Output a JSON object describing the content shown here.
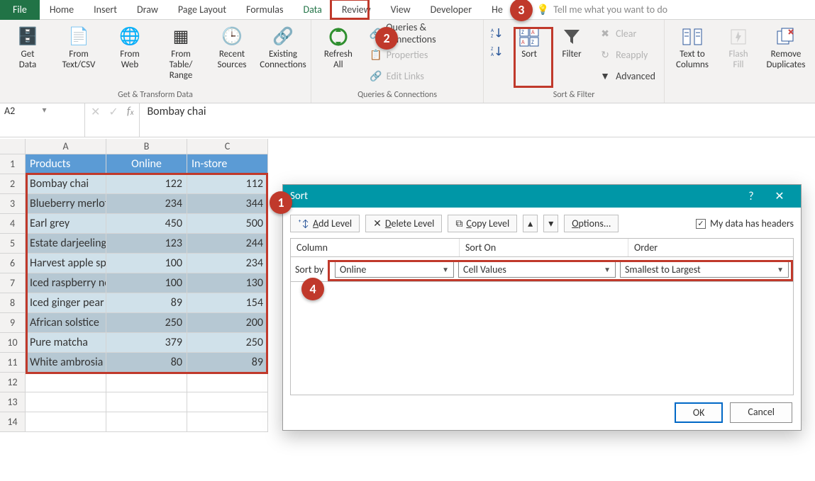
{
  "tabs": {
    "file": "File",
    "list": [
      "Home",
      "Insert",
      "Draw",
      "Page Layout",
      "Formulas",
      "Data",
      "Review",
      "View",
      "Developer",
      "He"
    ],
    "active": "Data"
  },
  "tellme": "Tell me what you want to do",
  "ribbon": {
    "get_transform": {
      "label": "Get & Transform Data",
      "buttons": [
        "Get\nData",
        "From\nText/CSV",
        "From\nWeb",
        "From Table/\nRange",
        "Recent\nSources",
        "Existing\nConnections"
      ]
    },
    "queries": {
      "label": "Queries & Connections",
      "refresh": "Refresh\nAll",
      "items": [
        "Queries & Connections",
        "Properties",
        "Edit Links"
      ]
    },
    "sortfilter": {
      "label": "Sort & Filter",
      "sort": "Sort",
      "filter": "Filter",
      "clear": "Clear",
      "reapply": "Reapply",
      "advanced": "Advanced"
    },
    "datatools": {
      "t2c": "Text to\nColumns",
      "ff": "Flash\nFill",
      "rd": "Remove\nDuplicates"
    }
  },
  "formula_bar": {
    "name": "A2",
    "value": "Bombay chai"
  },
  "grid": {
    "cols": [
      "A",
      "B",
      "C"
    ],
    "header": [
      "Products",
      "Online",
      "In-store"
    ],
    "rows": [
      [
        "Bombay chai",
        "122",
        "112"
      ],
      [
        "Blueberry merlot",
        "234",
        "344"
      ],
      [
        "Earl grey",
        "450",
        "500"
      ],
      [
        "Estate darjeeling",
        "123",
        "244"
      ],
      [
        "Harvest apple spi",
        "100",
        "234"
      ],
      [
        "Iced raspberry ne",
        "100",
        "130"
      ],
      [
        "Iced ginger pear",
        "89",
        "154"
      ],
      [
        "African solstice",
        "250",
        "200"
      ],
      [
        "Pure matcha",
        "379",
        "250"
      ],
      [
        "White ambrosia",
        "80",
        "89"
      ]
    ],
    "empty_rows": 3
  },
  "callouts": {
    "1": "1",
    "2": "2",
    "3": "3",
    "4": "4"
  },
  "dialog": {
    "title": "Sort",
    "add": "Add Level",
    "del": "Delete Level",
    "copy": "Copy Level",
    "options": "Options...",
    "headers_chk": "My data has headers",
    "col_hdr": "Column",
    "sorton_hdr": "Sort On",
    "order_hdr": "Order",
    "sortby": "Sort by",
    "col_val": "Online",
    "sorton_val": "Cell Values",
    "order_val": "Smallest to Largest",
    "ok": "OK",
    "cancel": "Cancel"
  },
  "colors": {
    "accent": "#217346",
    "callout": "#c0392b",
    "dlg_title": "#0097a7",
    "table_hdr": "#5b9bd5"
  }
}
